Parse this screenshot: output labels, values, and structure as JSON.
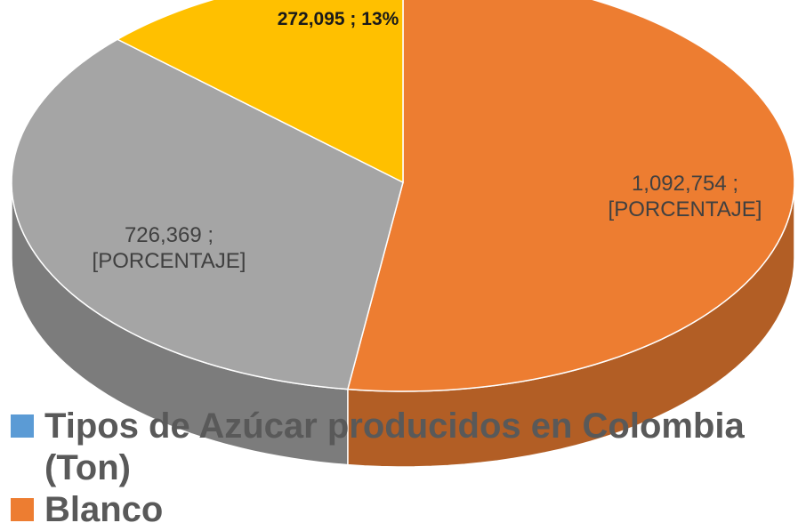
{
  "chart_data": {
    "type": "pie",
    "values": [
      1092754,
      726369,
      272095
    ],
    "value_labels": [
      "1,092,754 ; [PORCENTAJE]",
      "726,369 ; [PORCENTAJE]",
      "272,095 ; 13%"
    ],
    "colors": [
      "#ed7d31",
      "#a5a5a5",
      "#ffc000"
    ],
    "start_angle": 0,
    "direction": "clockwise",
    "three_d": true,
    "legend": [
      {
        "label": "Tipos de Azúcar producidos en Colombia (Ton)",
        "color": "#5b9bd5"
      },
      {
        "label": "Blanco",
        "color": "#ed7d31"
      }
    ]
  }
}
